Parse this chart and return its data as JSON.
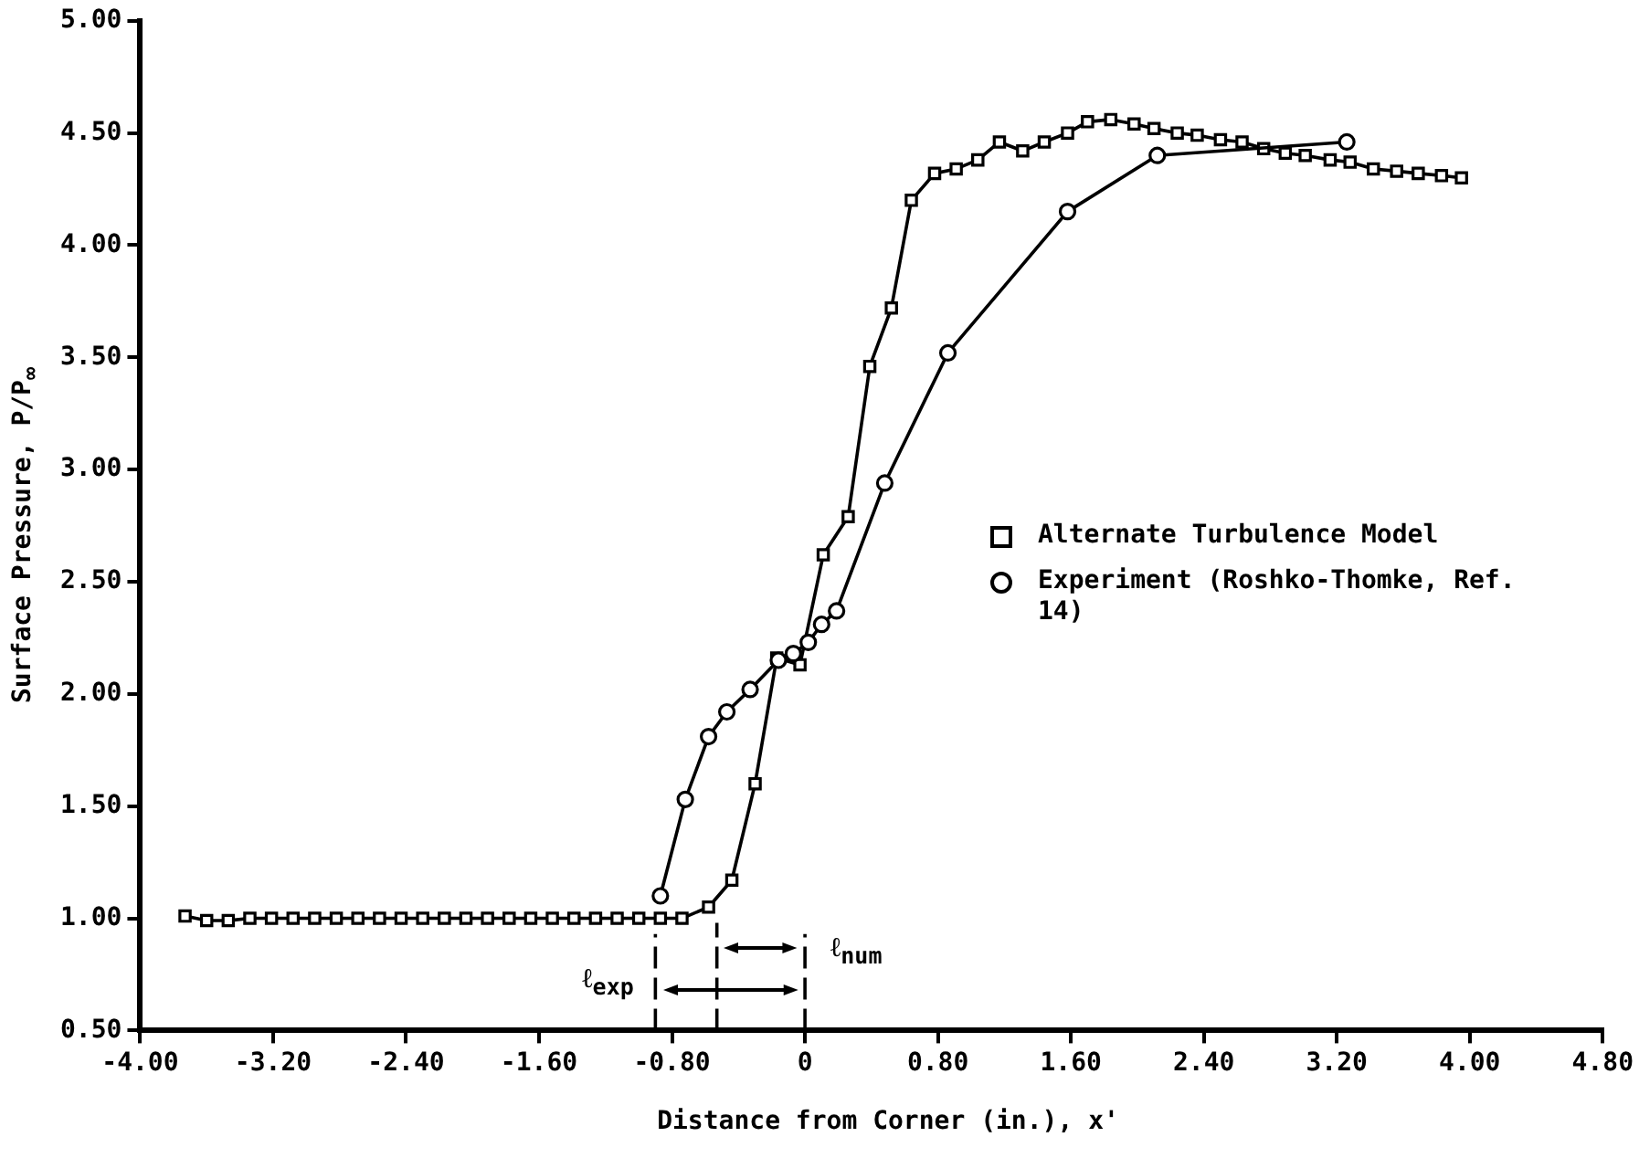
{
  "chart_data": {
    "type": "line",
    "xlabel": "Distance from Corner (in.), x'",
    "ylabel": "Surface Pressure, P/P$_{∞}$",
    "xlim": [
      -4.0,
      4.8
    ],
    "ylim": [
      0.5,
      5.0
    ],
    "xticks": [
      {
        "value": -4.0,
        "label": "-4.00"
      },
      {
        "value": -3.2,
        "label": "-3.20"
      },
      {
        "value": -2.4,
        "label": "-2.40"
      },
      {
        "value": -1.6,
        "label": "-1.60"
      },
      {
        "value": -0.8,
        "label": "-0.80"
      },
      0,
      {
        "value": 0.8,
        "label": "0.80"
      },
      {
        "value": 1.6,
        "label": "1.60"
      },
      {
        "value": 2.4,
        "label": "2.40"
      },
      {
        "value": 3.2,
        "label": "3.20"
      },
      {
        "value": 4.0,
        "label": "4.00"
      },
      {
        "value": 4.8,
        "label": "4.80"
      }
    ],
    "yticks": [
      {
        "value": 0.5,
        "label": "0.50"
      },
      {
        "value": 1.0,
        "label": "1.00"
      },
      {
        "value": 1.5,
        "label": "1.50"
      },
      {
        "value": 2.0,
        "label": "2.00"
      },
      {
        "value": 2.5,
        "label": "2.50"
      },
      {
        "value": 3.0,
        "label": "3.00"
      },
      {
        "value": 3.5,
        "label": "3.50"
      },
      {
        "value": 4.0,
        "label": "4.00"
      },
      {
        "value": 4.5,
        "label": "4.50"
      },
      {
        "value": 5.0,
        "label": "5.00"
      }
    ],
    "grid": false,
    "legend": "right",
    "line_style": "solid",
    "series": [
      {
        "name": "Alternate Turbulence Model",
        "color": "#000000",
        "marker": "square",
        "x": [
          -3.73,
          -3.6,
          -3.47,
          -3.34,
          -3.21,
          -3.08,
          -2.95,
          -2.82,
          -2.69,
          -2.56,
          -2.43,
          -2.3,
          -2.17,
          -2.04,
          -1.91,
          -1.78,
          -1.65,
          -1.52,
          -1.39,
          -1.26,
          -1.13,
          -1.0,
          -0.87,
          -0.74,
          -0.58,
          -0.44,
          -0.3,
          -0.17,
          -0.03,
          0.11,
          0.26,
          0.39,
          0.52,
          0.64,
          0.78,
          0.91,
          1.04,
          1.17,
          1.31,
          1.44,
          1.58,
          1.7,
          1.84,
          1.98,
          2.1,
          2.24,
          2.36,
          2.5,
          2.63,
          2.76,
          2.89,
          3.01,
          3.16,
          3.28,
          3.42,
          3.56,
          3.69,
          3.83,
          3.95
        ],
        "values": [
          1.01,
          0.99,
          0.99,
          1.0,
          1.0,
          1.0,
          1.0,
          1.0,
          1.0,
          1.0,
          1.0,
          1.0,
          1.0,
          1.0,
          1.0,
          1.0,
          1.0,
          1.0,
          1.0,
          1.0,
          1.0,
          1.0,
          1.0,
          1.0,
          1.05,
          1.17,
          1.6,
          2.16,
          2.13,
          2.62,
          2.79,
          3.46,
          3.72,
          4.2,
          4.32,
          4.34,
          4.38,
          4.46,
          4.42,
          4.46,
          4.5,
          4.55,
          4.56,
          4.54,
          4.52,
          4.5,
          4.49,
          4.47,
          4.46,
          4.43,
          4.41,
          4.4,
          4.38,
          4.37,
          4.34,
          4.33,
          4.32,
          4.31,
          4.3
        ]
      },
      {
        "name": "Experiment (Roshko-Thomke, Ref. 14)",
        "color": "#000000",
        "marker": "circle",
        "x": [
          -0.87,
          -0.72,
          -0.58,
          -0.47,
          -0.33,
          -0.16,
          -0.07,
          0.02,
          0.1,
          0.19,
          0.48,
          0.86,
          1.58,
          2.12,
          3.26
        ],
        "values": [
          1.1,
          1.53,
          1.81,
          1.92,
          2.02,
          2.15,
          2.18,
          2.23,
          2.31,
          2.37,
          2.94,
          3.52,
          4.15,
          4.4,
          4.46
        ]
      }
    ],
    "ref_lines": [
      {
        "axis": "x",
        "value": -0.9,
        "line_style": "dashed"
      },
      {
        "axis": "x",
        "value": -0.53,
        "line_style": "dashed"
      },
      {
        "axis": "x",
        "value": 0,
        "line_style": "dashed"
      }
    ],
    "annotations": [
      "ℓ$_{exp}$",
      "ℓ$_{num}$"
    ]
  }
}
